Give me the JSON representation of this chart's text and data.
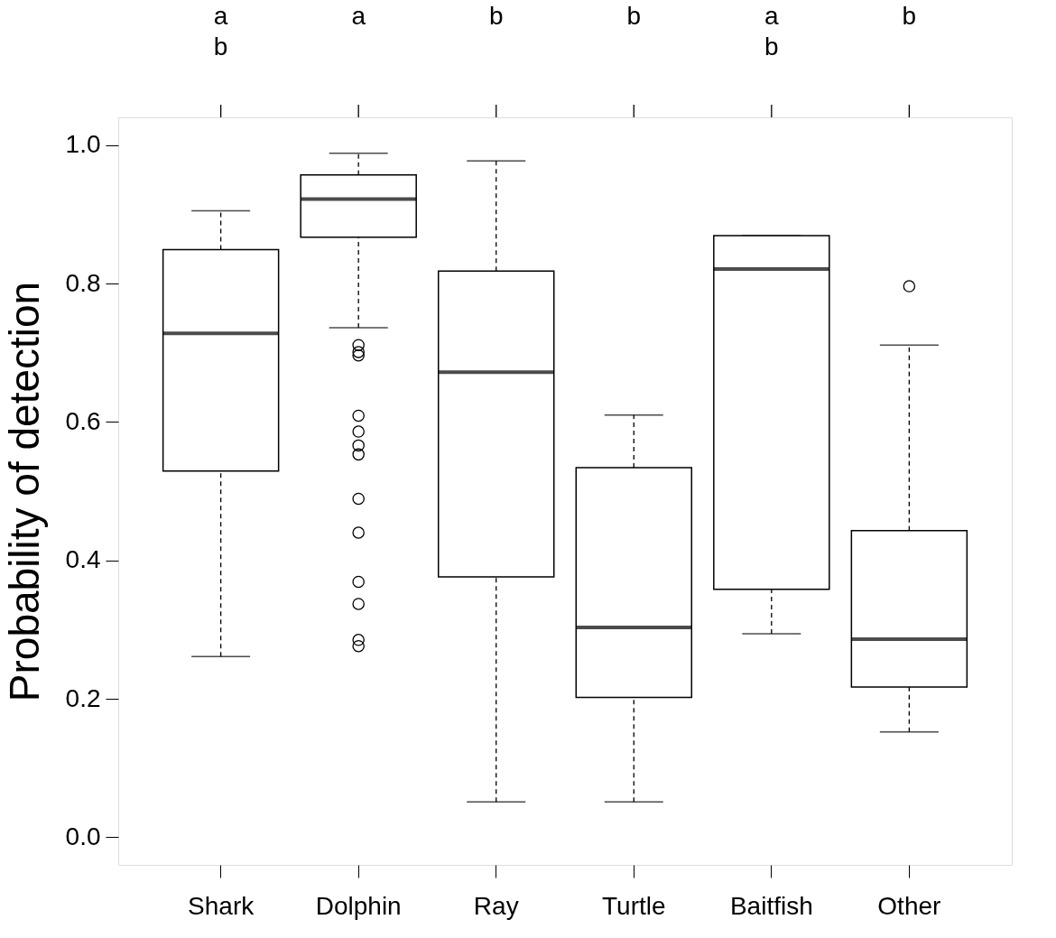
{
  "chart_data": {
    "type": "box",
    "ylabel": "Probability of detection",
    "categories": [
      "Shark",
      "Dolphin",
      "Ray",
      "Turtle",
      "Baitfish",
      "Other"
    ],
    "boxes": [
      {
        "low": 0.261,
        "q1": 0.529,
        "median": 0.728,
        "q3": 0.849,
        "high": 0.905
      },
      {
        "low": 0.736,
        "q1": 0.867,
        "median": 0.922,
        "q3": 0.957,
        "high": 0.988,
        "outliers": [
          0.711,
          0.701,
          0.696,
          0.609,
          0.586,
          0.566,
          0.553,
          0.489,
          0.44,
          0.369,
          0.337,
          0.285,
          0.276
        ]
      },
      {
        "low": 0.051,
        "q1": 0.376,
        "median": 0.672,
        "q3": 0.818,
        "high": 0.977
      },
      {
        "low": 0.051,
        "q1": 0.202,
        "median": 0.303,
        "q3": 0.534,
        "high": 0.61
      },
      {
        "low": 0.294,
        "q1": 0.358,
        "median": 0.821,
        "q3": 0.869,
        "high": 0.869
      },
      {
        "low": 0.152,
        "q1": 0.217,
        "median": 0.286,
        "q3": 0.443,
        "high": 0.711,
        "outliers": [
          0.796
        ]
      }
    ],
    "ylim": [
      -0.04,
      1.04
    ],
    "yticks": [
      {
        "value": 0,
        "label": "0.0"
      },
      {
        "value": 0.2,
        "label": "0.2"
      },
      {
        "value": 0.4,
        "label": "0.4"
      },
      {
        "value": 0.6,
        "label": "0.6"
      },
      {
        "value": 0.8,
        "label": "0.8"
      },
      {
        "value": 1,
        "label": "1.0"
      }
    ],
    "annotations": [
      "a\nb",
      "a",
      "b",
      "b",
      "a\nb",
      "b"
    ]
  }
}
